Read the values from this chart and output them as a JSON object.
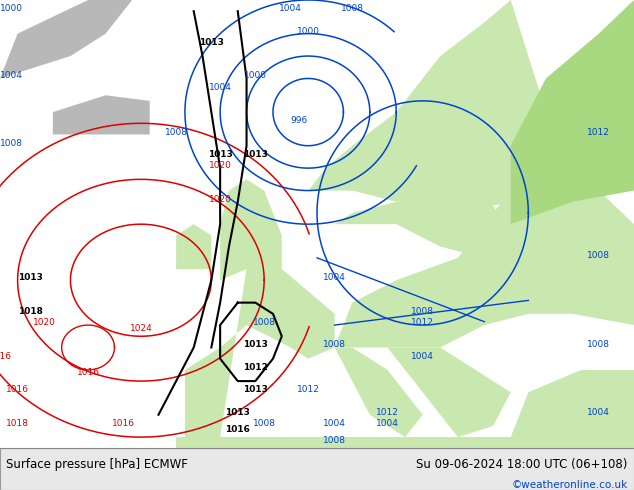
{
  "title_left": "Surface pressure [hPa] ECMWF",
  "title_right": "Su 09-06-2024 18:00 UTC (06+108)",
  "credit": "©weatheronline.co.uk",
  "ocean_color": "#e8e8e8",
  "land_color_green": "#c8e8b0",
  "land_color_bright": "#a8d880",
  "land_color_gray": "#b0b0b0",
  "footer_bg": "#e8e8e8",
  "figsize": [
    6.34,
    4.9
  ],
  "dpi": 100
}
